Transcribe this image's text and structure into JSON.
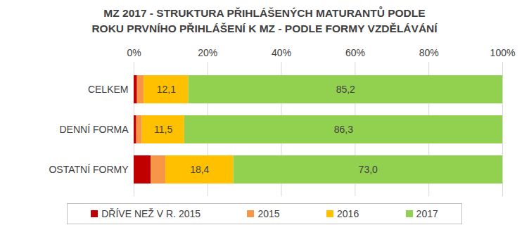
{
  "chart_data": {
    "type": "bar",
    "orientation": "horizontal",
    "stacked": true,
    "title": "MZ 2017 - STRUKTURA PŘIHLÁŠENÝCH MATURANTŮ PODLE ROKU PRVNÍHO PŘIHLÁŠENÍ K MZ - PODLE FORMY VZDĚLÁVÁNÍ",
    "categories": [
      "CELKEM",
      "DENNÍ FORMA",
      "OSTATNÍ FORMY"
    ],
    "series": [
      {
        "name": "DŘÍVE NEŽ V R. 2015",
        "color": "#c00000",
        "values": [
          0.9,
          0.7,
          4.6
        ]
      },
      {
        "name": "2015",
        "color": "#f79646",
        "values": [
          1.8,
          1.5,
          4.0
        ]
      },
      {
        "name": "2016",
        "color": "#ffc000",
        "values": [
          12.1,
          11.5,
          18.4
        ],
        "data_labels": true,
        "value_labels": [
          "12,1",
          "11,5",
          "18,4"
        ]
      },
      {
        "name": "2017",
        "color": "#92d050",
        "values": [
          85.2,
          86.3,
          73.0
        ],
        "data_labels": true,
        "value_labels": [
          "85,2",
          "86,3",
          "73,0"
        ]
      }
    ],
    "xlim": [
      0,
      100
    ],
    "xticks": [
      {
        "value": 0,
        "label": "0%"
      },
      {
        "value": 20,
        "label": "20%"
      },
      {
        "value": 40,
        "label": "40%"
      },
      {
        "value": 60,
        "label": "60%"
      },
      {
        "value": 80,
        "label": "80%"
      },
      {
        "value": 100,
        "label": "100%"
      }
    ],
    "grid": true,
    "legend": "bottom"
  }
}
